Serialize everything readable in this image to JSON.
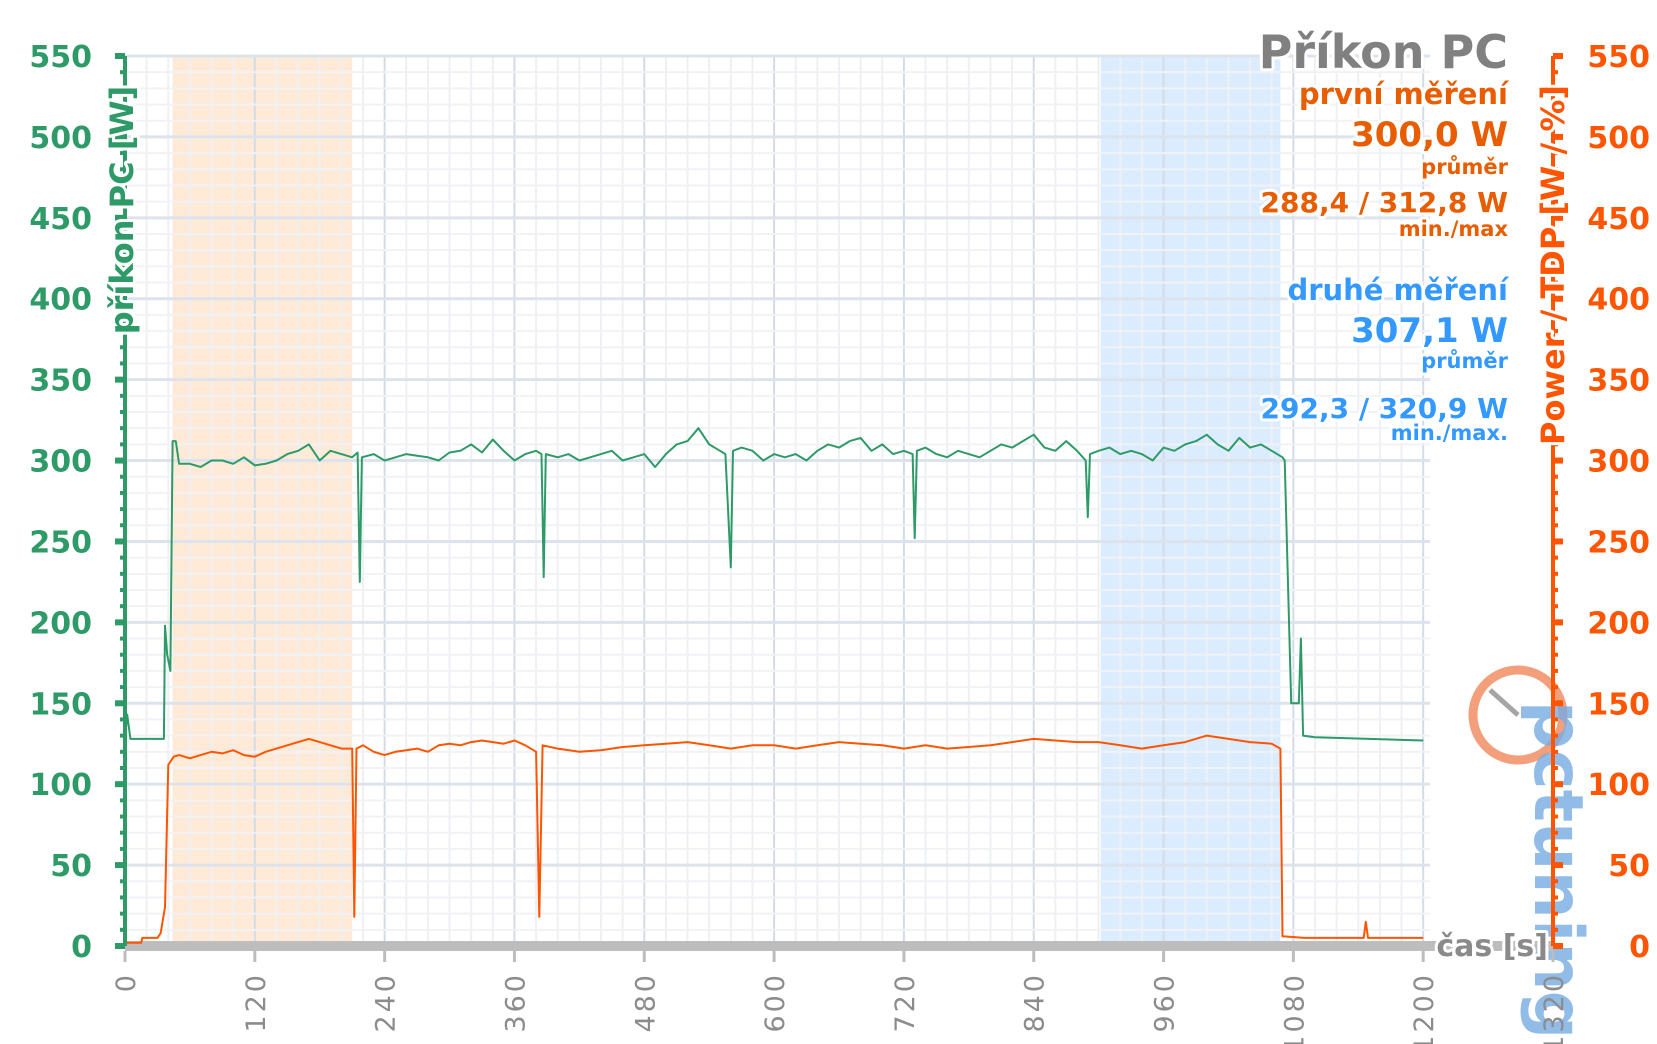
{
  "chart_data": {
    "type": "line",
    "title": "Příkon PC",
    "xlabel": "čas [s]",
    "ylabel": "příkon PC [W]",
    "y2label": "Power / TDP [W / %]",
    "xlim": [
      0,
      1320
    ],
    "ylim": [
      0,
      550
    ],
    "y2lim": [
      0,
      550
    ],
    "xticks": [
      0,
      120,
      240,
      360,
      480,
      600,
      720,
      840,
      960,
      1080,
      1200,
      1320
    ],
    "yticks": [
      0,
      50,
      100,
      150,
      200,
      250,
      300,
      350,
      400,
      450,
      500,
      550
    ],
    "grid": true,
    "highlight_bands": [
      {
        "from": 44,
        "to": 210,
        "color": "#fde3c8"
      },
      {
        "from": 902,
        "to": 1068,
        "color": "#cfe6fd"
      }
    ],
    "series": [
      {
        "axis": "left",
        "color": "#2e9a68",
        "points": [
          [
            0,
            128
          ],
          [
            2,
            143
          ],
          [
            5,
            128
          ],
          [
            36,
            128
          ],
          [
            37,
            198
          ],
          [
            39,
            180
          ],
          [
            42,
            170
          ],
          [
            44,
            312
          ],
          [
            47,
            312
          ],
          [
            50,
            298
          ],
          [
            60,
            298
          ],
          [
            70,
            296
          ],
          [
            80,
            300
          ],
          [
            90,
            300
          ],
          [
            100,
            298
          ],
          [
            110,
            302
          ],
          [
            120,
            297
          ],
          [
            130,
            298
          ],
          [
            140,
            300
          ],
          [
            150,
            304
          ],
          [
            160,
            306
          ],
          [
            170,
            310
          ],
          [
            180,
            300
          ],
          [
            190,
            306
          ],
          [
            200,
            304
          ],
          [
            210,
            302
          ],
          [
            215,
            305
          ],
          [
            217,
            225
          ],
          [
            219,
            302
          ],
          [
            230,
            304
          ],
          [
            240,
            300
          ],
          [
            250,
            302
          ],
          [
            260,
            304
          ],
          [
            270,
            303
          ],
          [
            280,
            302
          ],
          [
            290,
            300
          ],
          [
            300,
            305
          ],
          [
            310,
            306
          ],
          [
            320,
            310
          ],
          [
            330,
            305
          ],
          [
            340,
            313
          ],
          [
            350,
            306
          ],
          [
            360,
            300
          ],
          [
            370,
            304
          ],
          [
            380,
            306
          ],
          [
            385,
            304
          ],
          [
            387,
            228
          ],
          [
            389,
            304
          ],
          [
            400,
            302
          ],
          [
            410,
            304
          ],
          [
            420,
            300
          ],
          [
            430,
            302
          ],
          [
            440,
            304
          ],
          [
            450,
            306
          ],
          [
            460,
            300
          ],
          [
            470,
            302
          ],
          [
            480,
            304
          ],
          [
            490,
            296
          ],
          [
            500,
            304
          ],
          [
            510,
            310
          ],
          [
            520,
            312
          ],
          [
            530,
            320
          ],
          [
            540,
            310
          ],
          [
            550,
            306
          ],
          [
            555,
            304
          ],
          [
            560,
            234
          ],
          [
            562,
            306
          ],
          [
            570,
            308
          ],
          [
            580,
            306
          ],
          [
            590,
            300
          ],
          [
            600,
            304
          ],
          [
            610,
            302
          ],
          [
            620,
            304
          ],
          [
            630,
            300
          ],
          [
            640,
            306
          ],
          [
            650,
            310
          ],
          [
            660,
            308
          ],
          [
            670,
            312
          ],
          [
            680,
            314
          ],
          [
            690,
            306
          ],
          [
            700,
            310
          ],
          [
            710,
            304
          ],
          [
            720,
            306
          ],
          [
            728,
            304
          ],
          [
            730,
            252
          ],
          [
            732,
            306
          ],
          [
            740,
            308
          ],
          [
            750,
            304
          ],
          [
            760,
            302
          ],
          [
            770,
            306
          ],
          [
            780,
            304
          ],
          [
            790,
            302
          ],
          [
            800,
            306
          ],
          [
            810,
            310
          ],
          [
            820,
            308
          ],
          [
            830,
            312
          ],
          [
            840,
            316
          ],
          [
            850,
            308
          ],
          [
            860,
            306
          ],
          [
            870,
            312
          ],
          [
            880,
            306
          ],
          [
            888,
            300
          ],
          [
            890,
            265
          ],
          [
            892,
            304
          ],
          [
            900,
            306
          ],
          [
            910,
            308
          ],
          [
            920,
            304
          ],
          [
            930,
            306
          ],
          [
            940,
            304
          ],
          [
            950,
            300
          ],
          [
            960,
            308
          ],
          [
            970,
            306
          ],
          [
            980,
            310
          ],
          [
            990,
            312
          ],
          [
            1000,
            316
          ],
          [
            1010,
            310
          ],
          [
            1020,
            306
          ],
          [
            1030,
            314
          ],
          [
            1040,
            308
          ],
          [
            1050,
            310
          ],
          [
            1060,
            306
          ],
          [
            1070,
            302
          ],
          [
            1072,
            300
          ],
          [
            1078,
            150
          ],
          [
            1085,
            150
          ],
          [
            1087,
            190
          ],
          [
            1089,
            130
          ],
          [
            1100,
            129
          ],
          [
            1150,
            128
          ],
          [
            1200,
            127
          ]
        ]
      },
      {
        "axis": "right",
        "color": "#ff5500",
        "points": [
          [
            0,
            2
          ],
          [
            15,
            2
          ],
          [
            16,
            5
          ],
          [
            30,
            5
          ],
          [
            33,
            8
          ],
          [
            36,
            20
          ],
          [
            37,
            24
          ],
          [
            40,
            112
          ],
          [
            45,
            117
          ],
          [
            50,
            118
          ],
          [
            60,
            116
          ],
          [
            70,
            118
          ],
          [
            80,
            120
          ],
          [
            90,
            119
          ],
          [
            100,
            121
          ],
          [
            110,
            118
          ],
          [
            120,
            117
          ],
          [
            130,
            120
          ],
          [
            140,
            122
          ],
          [
            150,
            124
          ],
          [
            160,
            126
          ],
          [
            170,
            128
          ],
          [
            180,
            126
          ],
          [
            190,
            124
          ],
          [
            200,
            122
          ],
          [
            210,
            122
          ],
          [
            212,
            18
          ],
          [
            214,
            122
          ],
          [
            220,
            124
          ],
          [
            230,
            120
          ],
          [
            240,
            118
          ],
          [
            250,
            120
          ],
          [
            260,
            121
          ],
          [
            270,
            122
          ],
          [
            280,
            120
          ],
          [
            290,
            124
          ],
          [
            300,
            125
          ],
          [
            310,
            124
          ],
          [
            320,
            126
          ],
          [
            330,
            127
          ],
          [
            340,
            126
          ],
          [
            350,
            125
          ],
          [
            360,
            127
          ],
          [
            370,
            124
          ],
          [
            380,
            120
          ],
          [
            383,
            18
          ],
          [
            386,
            124
          ],
          [
            400,
            122
          ],
          [
            420,
            120
          ],
          [
            440,
            121
          ],
          [
            460,
            123
          ],
          [
            480,
            124
          ],
          [
            500,
            125
          ],
          [
            520,
            126
          ],
          [
            540,
            124
          ],
          [
            560,
            122
          ],
          [
            580,
            124
          ],
          [
            600,
            124
          ],
          [
            620,
            122
          ],
          [
            640,
            124
          ],
          [
            660,
            126
          ],
          [
            680,
            125
          ],
          [
            700,
            124
          ],
          [
            720,
            122
          ],
          [
            740,
            124
          ],
          [
            760,
            122
          ],
          [
            780,
            123
          ],
          [
            800,
            124
          ],
          [
            820,
            126
          ],
          [
            840,
            128
          ],
          [
            860,
            127
          ],
          [
            880,
            126
          ],
          [
            900,
            126
          ],
          [
            920,
            124
          ],
          [
            940,
            122
          ],
          [
            960,
            124
          ],
          [
            980,
            126
          ],
          [
            1000,
            130
          ],
          [
            1020,
            128
          ],
          [
            1040,
            126
          ],
          [
            1060,
            125
          ],
          [
            1068,
            122
          ],
          [
            1070,
            6
          ],
          [
            1090,
            5
          ],
          [
            1145,
            5
          ],
          [
            1147,
            15
          ],
          [
            1149,
            5
          ],
          [
            1200,
            5
          ]
        ]
      }
    ],
    "legend": {
      "first": {
        "label": "první měření",
        "avg": "300,0 W",
        "avg_label": "průměr",
        "minmax": "288,4 / 312,8 W",
        "minmax_label": "min./max",
        "color": "#e85d00"
      },
      "second": {
        "label": "druhé měření",
        "avg": "307,1 W",
        "avg_label": "průměr",
        "minmax": "292,3 / 320,9 W",
        "minmax_label": "min./max.",
        "color": "#3399ff"
      }
    },
    "colors": {
      "left_axis": "#2e9a68",
      "right_axis": "#ff5500",
      "title": "#808080"
    }
  },
  "watermark": {
    "text": "pctuning",
    "icon": "gauge-logo-icon"
  }
}
